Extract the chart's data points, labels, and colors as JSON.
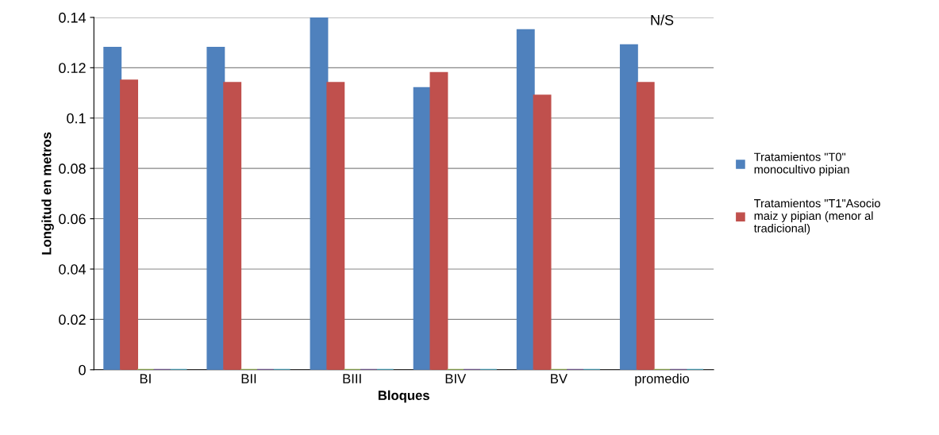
{
  "chart_data": {
    "type": "bar",
    "xlabel": "Bloques",
    "ylabel": "Longitud en metros",
    "categories": [
      "BI",
      "BII",
      "BIII",
      "BIV",
      "BV",
      "promedio"
    ],
    "series": [
      {
        "name": "Tratamientos \"T0\"\nmonocultivo pipian",
        "color": "#4f81bd",
        "values": [
          0.128,
          0.128,
          0.14,
          0.112,
          0.135,
          0.129
        ]
      },
      {
        "name": "Tratamientos \"T1\"Asocio\nmaiz y pipian (menor al\ntradicional)",
        "color": "#c0504d",
        "values": [
          0.115,
          0.114,
          0.114,
          0.118,
          0.109,
          0.114
        ]
      },
      {
        "color": "#9bbb59",
        "values": [
          0,
          0,
          0,
          0,
          0,
          0
        ]
      },
      {
        "color": "#8064a2",
        "values": [
          0,
          0,
          0,
          0,
          0,
          0
        ]
      },
      {
        "color": "#4bacc6",
        "values": [
          0,
          0,
          0,
          0,
          0,
          0
        ]
      }
    ],
    "ylim": [
      0,
      0.14
    ],
    "yticks": [
      0,
      0.02,
      0.04,
      0.06,
      0.08,
      0.1,
      0.12,
      0.14
    ],
    "grid": "y",
    "legend": "right",
    "annotations": [
      "N/S"
    ]
  }
}
